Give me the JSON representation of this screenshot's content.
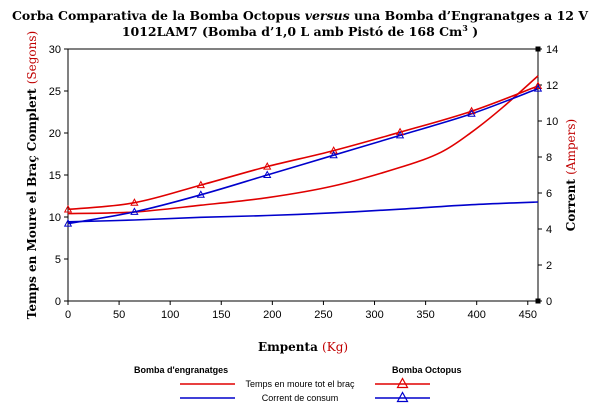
{
  "chart_data": {
    "type": "line",
    "title_part1": "Corba Comparativa de la Bomba Octopus ",
    "title_italic": "versus",
    "title_part2": " una Bomba d’Engranatges a 12 V",
    "subtitle_part1": "1012LAM7 (Bomba d’1,0 L amb Pistó de 168 Cm",
    "subtitle_sup": "3",
    "subtitle_part2": " )",
    "xlabel": "Empenta",
    "xlabel_unit": "(Kg)",
    "ylabel": "Temps en Moure el Braç Complert",
    "ylabel_unit": "(Segons)",
    "y2label": "Corrent",
    "y2label_unit": "(Ampers)",
    "xlim": [
      0,
      460
    ],
    "ylim": [
      0,
      30
    ],
    "y2lim": [
      0,
      14
    ],
    "xticks": [
      "0",
      "50",
      "100",
      "150",
      "200",
      "250",
      "300",
      "350",
      "400",
      "450"
    ],
    "yticks": [
      "0",
      "5",
      "10",
      "15",
      "20",
      "25",
      "30"
    ],
    "y2ticks": [
      "0",
      "2",
      "4",
      "6",
      "8",
      "10",
      "12",
      "14"
    ],
    "colors": {
      "time": "#e00000",
      "current": "#0000cc"
    },
    "legend": {
      "gear_heading": "Bomba d'engranatges",
      "octopus_heading": "Bomba Octopus",
      "time_label": "Temps en moure tot el braç",
      "current_label": "Corrent de consum"
    },
    "series": [
      {
        "pump": "gear",
        "measure": "time",
        "axis": "left",
        "marker": "none",
        "x": [
          0,
          65,
          130,
          195,
          260,
          325,
          365,
          395,
          425,
          460
        ],
        "y": [
          10.4,
          10.6,
          11.4,
          12.3,
          13.7,
          15.9,
          17.7,
          20.1,
          23.0,
          26.8
        ]
      },
      {
        "pump": "gear",
        "measure": "current",
        "axis": "right",
        "marker": "none",
        "x": [
          0,
          65,
          130,
          195,
          260,
          325,
          395,
          460
        ],
        "y": [
          4.4,
          4.5,
          4.65,
          4.75,
          4.9,
          5.1,
          5.35,
          5.5
        ]
      },
      {
        "pump": "octopus",
        "measure": "time",
        "axis": "left",
        "marker": "triangle",
        "x": [
          0,
          65,
          130,
          195,
          260,
          325,
          395,
          460
        ],
        "y": [
          10.9,
          11.7,
          13.8,
          16.0,
          17.9,
          20.1,
          22.6,
          25.6
        ]
      },
      {
        "pump": "octopus",
        "measure": "current",
        "axis": "right",
        "marker": "triangle",
        "x": [
          0,
          65,
          130,
          195,
          260,
          325,
          395,
          460
        ],
        "y": [
          4.3,
          4.95,
          5.9,
          7.0,
          8.1,
          9.2,
          10.4,
          11.8
        ]
      }
    ]
  }
}
